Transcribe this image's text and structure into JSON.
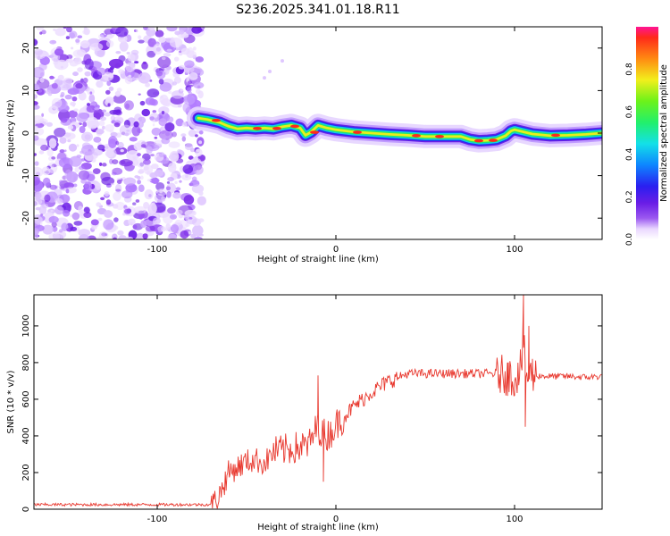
{
  "page": {
    "title": "S236.2025.341.01.18.R11"
  },
  "chart_data": [
    {
      "type": "heatmap",
      "name": "spectrogram",
      "xlabel": "Height of straight line (km)",
      "ylabel": "Frequency (Hz)",
      "xlim": [
        -169,
        149
      ],
      "ylim": [
        -25,
        25
      ],
      "xticks": [
        -100,
        0,
        100
      ],
      "yticks": [
        -20,
        -10,
        0,
        10,
        20
      ],
      "noise_region_x": [
        -169,
        -75
      ],
      "ridge_track": {
        "x": [
          -77,
          -72,
          -65,
          -60,
          -55,
          -50,
          -45,
          -40,
          -35,
          -30,
          -25,
          -20,
          -17,
          -14,
          -10,
          -5,
          0,
          10,
          20,
          30,
          40,
          50,
          60,
          70,
          75,
          80,
          85,
          90,
          95,
          98,
          100,
          105,
          110,
          120,
          130,
          140,
          149
        ],
        "y": [
          3.5,
          3.2,
          2.5,
          1.6,
          1.0,
          1.2,
          1.0,
          1.2,
          1.0,
          1.5,
          1.8,
          1.2,
          -0.5,
          0.2,
          1.8,
          1.2,
          0.8,
          0.3,
          0.0,
          -0.3,
          -0.5,
          -0.8,
          -0.8,
          -0.8,
          -1.5,
          -1.8,
          -1.7,
          -1.5,
          -0.6,
          0.5,
          0.8,
          0.3,
          -0.2,
          -0.6,
          -0.5,
          -0.3,
          0.0
        ]
      },
      "colorbar": {
        "label": "Normalized spectral amplitude",
        "range": [
          0,
          1
        ],
        "ticks": [
          "0.0",
          "0.2",
          "0.4",
          "0.6",
          "0.8"
        ]
      }
    },
    {
      "type": "line",
      "name": "snr",
      "xlabel": "Height of straight line (km)",
      "ylabel": "SNR (10 * v/v)",
      "xlim": [
        -169,
        149
      ],
      "ylim": [
        0,
        1170
      ],
      "xticks": [
        -100,
        0,
        100
      ],
      "yticks": [
        0,
        200,
        400,
        600,
        800,
        1000
      ],
      "color": "#e8372d",
      "series": [
        {
          "name": "SNR",
          "x": [
            -169,
            -150,
            -130,
            -110,
            -90,
            -75,
            -70,
            -66,
            -60,
            -55,
            -50,
            -45,
            -40,
            -35,
            -30,
            -25,
            -20,
            -15,
            -12,
            -10,
            -8,
            -5,
            -2,
            0,
            5,
            10,
            15,
            20,
            25,
            30,
            35,
            40,
            45,
            50,
            60,
            70,
            80,
            90,
            95,
            100,
            103,
            105,
            107,
            110,
            120,
            130,
            140,
            149
          ],
          "y": [
            25,
            25,
            25,
            25,
            25,
            25,
            25,
            60,
            200,
            230,
            260,
            270,
            250,
            310,
            320,
            330,
            340,
            350,
            420,
            450,
            420,
            400,
            430,
            460,
            510,
            560,
            600,
            640,
            670,
            700,
            720,
            740,
            740,
            740,
            740,
            740,
            740,
            740,
            730,
            720,
            760,
            880,
            720,
            730,
            725,
            725,
            720,
            725
          ]
        }
      ],
      "spikes": [
        {
          "x": -10,
          "y": 730
        },
        {
          "x": -7,
          "y": 150
        },
        {
          "x": 96,
          "y": 800
        },
        {
          "x": 100,
          "y": 620
        },
        {
          "x": 105,
          "y": 1170
        },
        {
          "x": 106,
          "y": 450
        },
        {
          "x": 108,
          "y": 1000
        },
        {
          "x": 110,
          "y": 820
        }
      ]
    }
  ]
}
